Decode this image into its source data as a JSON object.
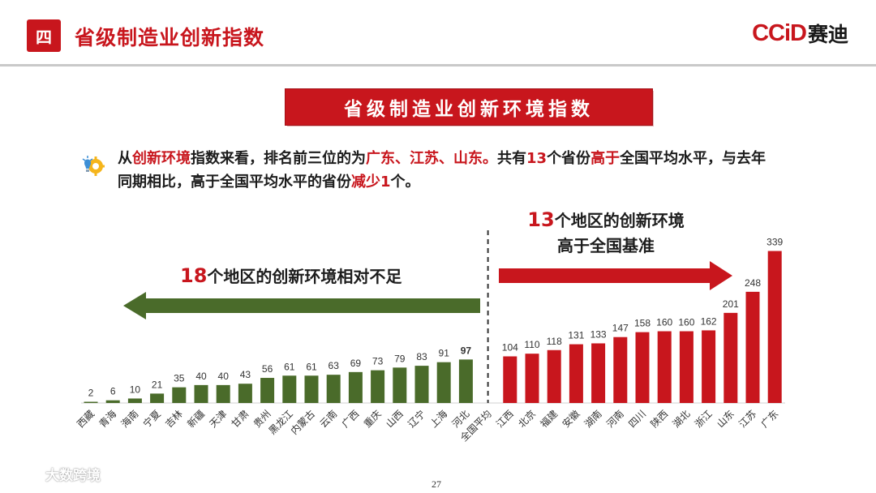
{
  "header": {
    "section_number": "四",
    "title": "省级制造业创新指数",
    "logo_latin": "CCiD",
    "logo_cn": "赛迪"
  },
  "banner": {
    "text": "省级制造业创新环境指数"
  },
  "summary": {
    "parts": [
      {
        "text": "从",
        "hl": false
      },
      {
        "text": "创新环境",
        "hl": true
      },
      {
        "text": "指数来看，排名前三位的为",
        "hl": false
      },
      {
        "text": "广东、江苏、山东。",
        "hl": true
      },
      {
        "text": "共有",
        "hl": false
      },
      {
        "text": "13",
        "hl": true
      },
      {
        "text": "个省份",
        "hl": false
      },
      {
        "text": "高于",
        "hl": true
      },
      {
        "text": "全国平均水平，与去年同期相比，高于全国平均水平的省份",
        "hl": false
      },
      {
        "text": "减少1",
        "hl": true
      },
      {
        "text": "个。",
        "hl": false
      }
    ]
  },
  "annotations": {
    "right_num": "13",
    "right_line1": "个地区的创新环境",
    "right_line2": "高于全国基准",
    "left_num": "18",
    "left_text": "个地区的创新环境相对不足"
  },
  "colors": {
    "below": "#4a6b2a",
    "above": "#c8161d",
    "accent": "#c8161d"
  },
  "chart_data": {
    "type": "bar",
    "title": "省级制造业创新环境指数",
    "categories": [
      "西藏",
      "青海",
      "海南",
      "宁夏",
      "吉林",
      "新疆",
      "天津",
      "甘肃",
      "贵州",
      "黑龙江",
      "内蒙古",
      "云南",
      "广西",
      "重庆",
      "山西",
      "辽宁",
      "上海",
      "河北",
      "全国平均",
      "江西",
      "北京",
      "福建",
      "安徽",
      "湖南",
      "河南",
      "四川",
      "陕西",
      "湖北",
      "浙江",
      "山东",
      "江苏",
      "广东"
    ],
    "values": [
      2,
      6,
      10,
      21,
      35,
      40,
      40,
      43,
      56,
      61,
      61,
      63,
      69,
      73,
      79,
      83,
      91,
      97,
      null,
      104,
      110,
      118,
      131,
      133,
      147,
      158,
      160,
      160,
      162,
      201,
      248,
      339
    ],
    "groups": [
      "below",
      "below",
      "below",
      "below",
      "below",
      "below",
      "below",
      "below",
      "below",
      "below",
      "below",
      "below",
      "below",
      "below",
      "below",
      "below",
      "below",
      "below",
      "baseline",
      "above",
      "above",
      "above",
      "above",
      "above",
      "above",
      "above",
      "above",
      "above",
      "above",
      "above",
      "above",
      "above"
    ],
    "ylim": [
      0,
      340
    ],
    "xlabel": "",
    "ylabel": "",
    "grid": false
  },
  "footer": {
    "page_number": "27",
    "watermark": "大数跨境"
  }
}
